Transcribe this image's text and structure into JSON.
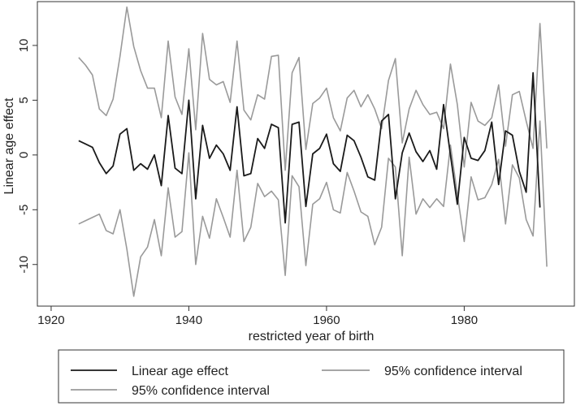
{
  "chart_data": {
    "type": "line",
    "title": "",
    "xlabel": "restricted year of birth",
    "ylabel": "Linear age effect",
    "xlim": [
      1918,
      1996
    ],
    "ylim": [
      -13.8,
      14
    ],
    "xticks": [
      1920,
      1940,
      1960,
      1980
    ],
    "yticks": [
      -10,
      -5,
      0,
      5,
      10
    ],
    "grid": false,
    "legend_position": "bottom",
    "colors": {
      "estimate": "#1a1a1a",
      "ci": "#9a9a9a"
    },
    "x": [
      1924,
      1925,
      1926,
      1927,
      1928,
      1929,
      1930,
      1931,
      1932,
      1933,
      1934,
      1935,
      1936,
      1937,
      1938,
      1939,
      1940,
      1941,
      1942,
      1943,
      1944,
      1945,
      1946,
      1947,
      1948,
      1949,
      1950,
      1951,
      1952,
      1953,
      1954,
      1955,
      1956,
      1957,
      1958,
      1959,
      1960,
      1961,
      1962,
      1963,
      1964,
      1965,
      1966,
      1967,
      1968,
      1969,
      1970,
      1971,
      1972,
      1973,
      1974,
      1975,
      1976,
      1977,
      1978,
      1979,
      1980,
      1981,
      1982,
      1983,
      1984,
      1985,
      1986,
      1987,
      1988,
      1989,
      1990,
      1991,
      1992
    ],
    "series": [
      {
        "name": "Linear age effect",
        "values": [
          1.3,
          1.0,
          0.7,
          -0.7,
          -1.7,
          -1.0,
          1.9,
          2.4,
          -1.4,
          -0.8,
          -1.3,
          0.0,
          -2.8,
          3.6,
          -1.2,
          -1.7,
          5.0,
          -4.0,
          2.7,
          -0.3,
          0.9,
          0.1,
          -1.4,
          4.4,
          -1.9,
          -1.7,
          1.5,
          0.6,
          2.8,
          2.5,
          -6.2,
          2.8,
          3.0,
          -4.7,
          0.1,
          0.6,
          1.9,
          -0.8,
          -1.5,
          1.8,
          1.3,
          -0.2,
          -2.0,
          -2.3,
          3.1,
          3.7,
          -4.0,
          0.2,
          2.0,
          0.3,
          -0.6,
          0.4,
          -1.3,
          4.6,
          0.0,
          -4.5,
          1.6,
          -0.3,
          -0.5,
          0.4,
          3.0,
          -2.7,
          2.2,
          1.8,
          -1.5,
          -3.4,
          7.5,
          -4.8,
          null
        ]
      },
      {
        "name": "95% confidence interval",
        "values": [
          8.9,
          8.2,
          7.3,
          4.2,
          3.6,
          5.1,
          9.0,
          13.5,
          9.9,
          7.7,
          6.1,
          6.1,
          3.4,
          10.4,
          5.3,
          3.7,
          9.7,
          2.3,
          11.1,
          6.9,
          6.4,
          6.7,
          4.8,
          10.4,
          4.1,
          3.2,
          5.5,
          5.1,
          9.0,
          9.1,
          -1.4,
          7.5,
          8.9,
          0.5,
          4.7,
          5.2,
          6.1,
          3.4,
          2.2,
          5.2,
          5.9,
          4.4,
          5.5,
          4.2,
          2.4,
          6.8,
          8.8,
          1.1,
          4.2,
          5.9,
          4.6,
          3.7,
          3.9,
          2.4,
          8.3,
          4.6,
          -1.1,
          4.8,
          3.1,
          2.7,
          3.4,
          6.4,
          0.8,
          5.5,
          5.8,
          3.1,
          0.6,
          12.0,
          0.6
        ]
      },
      {
        "name": "95% confidence interval",
        "values": [
          -6.3,
          -6.0,
          -5.7,
          -5.4,
          -6.9,
          -7.2,
          -5.0,
          -8.6,
          -12.9,
          -9.3,
          -8.4,
          -5.9,
          -9.2,
          -3.0,
          -7.5,
          -7.0,
          0.2,
          -10.0,
          -5.6,
          -7.6,
          -4.0,
          -5.7,
          -7.5,
          -1.4,
          -7.9,
          -6.6,
          -2.6,
          -3.8,
          -3.3,
          -4.1,
          -11.0,
          -1.9,
          -2.9,
          -10.1,
          -4.5,
          -4.0,
          -2.5,
          -5.0,
          -5.3,
          -1.6,
          -3.3,
          -5.2,
          -5.6,
          -8.2,
          -6.6,
          -0.3,
          -1.1,
          -9.2,
          -0.2,
          -5.4,
          -4.0,
          -4.8,
          -4.0,
          -4.7,
          0.9,
          -3.6,
          -7.9,
          -2.0,
          -4.1,
          -3.9,
          -2.7,
          -0.4,
          -6.3,
          -0.9,
          -2.1,
          -5.9,
          -7.4,
          3.1,
          -10.2
        ]
      }
    ]
  }
}
